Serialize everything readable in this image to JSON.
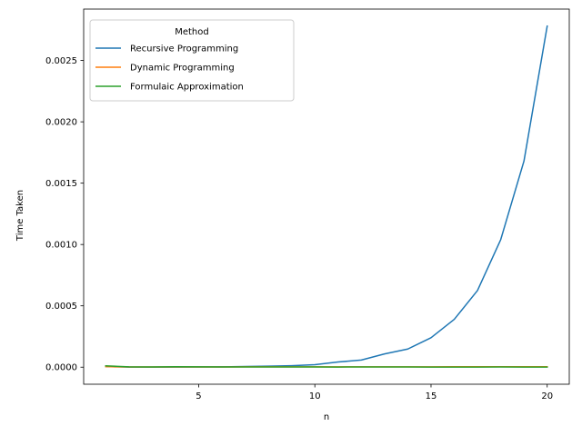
{
  "chart_data": {
    "type": "line",
    "title": "",
    "xlabel": "n",
    "ylabel": "Time Taken",
    "xlim": [
      0.05,
      20.95
    ],
    "ylim": [
      -0.000139,
      0.002919
    ],
    "x_ticks": [
      5,
      10,
      15,
      20
    ],
    "x_tick_labels": [
      "5",
      "10",
      "15",
      "20"
    ],
    "y_ticks": [
      0,
      0.0005,
      0.001,
      0.0015,
      0.002,
      0.0025
    ],
    "y_tick_labels": [
      "0.0000",
      "0.0005",
      "0.0010",
      "0.0015",
      "0.0020",
      "0.0025"
    ],
    "grid": false,
    "legend": {
      "title": "Method",
      "placement": "top-left"
    },
    "x": [
      1,
      2,
      3,
      4,
      5,
      6,
      7,
      8,
      9,
      10,
      11,
      12,
      13,
      14,
      15,
      16,
      17,
      18,
      19,
      20
    ],
    "series": [
      {
        "name": "Recursive Programming",
        "color": "#1f77b4",
        "values": [
          5e-06,
          5e-07,
          8e-07,
          1.2e-06,
          2e-06,
          3e-06,
          5e-06,
          8e-06,
          1.2e-05,
          2e-05,
          4.2e-05,
          5.8e-05,
          0.000108,
          0.000148,
          0.00024,
          0.00039,
          0.000625,
          0.00104,
          0.00168,
          0.00278
        ]
      },
      {
        "name": "Dynamic Programming",
        "color": "#ff7f0e",
        "values": [
          4e-06,
          1.5e-06,
          1.5e-06,
          1.8e-06,
          2e-06,
          2e-06,
          2.2e-06,
          2.2e-06,
          2.4e-06,
          2.5e-06,
          2.6e-06,
          2.8e-06,
          3e-06,
          3e-06,
          3e-06,
          3.2e-06,
          3.4e-06,
          3.5e-06,
          3.6e-06,
          3.8e-06
        ]
      },
      {
        "name": "Formulaic Approximation",
        "color": "#2ca02c",
        "values": [
          1.1e-05,
          3e-06,
          2e-06,
          4e-06,
          3e-06,
          2e-06,
          2e-06,
          2e-06,
          2e-06,
          2e-06,
          1e-06,
          2e-06,
          2e-06,
          1.5e-06,
          1e-06,
          1e-06,
          1e-06,
          2e-06,
          1e-06,
          1e-06
        ]
      }
    ]
  }
}
